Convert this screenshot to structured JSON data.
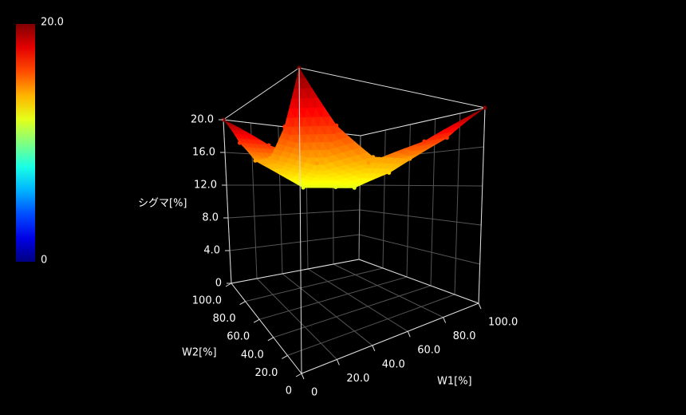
{
  "chart_data": {
    "type": "surface3d",
    "x_label": "W1[%]",
    "y_label": "W2[%]",
    "z_label": "シグマ[%]",
    "x": [
      0,
      20,
      40,
      60,
      80,
      100
    ],
    "y": [
      0,
      20,
      40,
      60,
      80,
      100
    ],
    "values": [
      [
        20,
        16.5,
        14.4,
        14.4,
        16.5,
        20
      ],
      [
        16.5,
        13.3,
        12,
        13.3,
        16.5,
        null
      ],
      [
        14.4,
        12,
        12,
        14.4,
        null,
        null
      ],
      [
        14.4,
        13.3,
        14.4,
        null,
        null,
        null
      ],
      [
        16.5,
        16.5,
        null,
        null,
        null,
        null
      ],
      [
        20,
        null,
        null,
        null,
        null,
        null
      ]
    ],
    "xlim": [
      0,
      100
    ],
    "ylim": [
      0,
      100
    ],
    "zlim": [
      0,
      20
    ],
    "xticks": [
      0,
      {
        "value": 20,
        "label": "20.0"
      },
      {
        "value": 40,
        "label": "40.0"
      },
      {
        "value": 60,
        "label": "60.0"
      },
      {
        "value": 80,
        "label": "80.0"
      },
      {
        "value": 100,
        "label": "100.0"
      }
    ],
    "yticks": [
      0,
      {
        "value": 20,
        "label": "20.0"
      },
      {
        "value": 40,
        "label": "40.0"
      },
      {
        "value": 60,
        "label": "60.0"
      },
      {
        "value": 80,
        "label": "80.0"
      },
      {
        "value": 100,
        "label": "100.0"
      }
    ],
    "zticks": [
      0,
      {
        "value": 4,
        "label": "4.0"
      },
      {
        "value": 8,
        "label": "8.0"
      },
      {
        "value": 12,
        "label": "12.0"
      },
      {
        "value": 16,
        "label": "16.0"
      },
      {
        "value": 20,
        "label": "20.0"
      }
    ],
    "colorbar_ticks": [
      0,
      {
        "value": 20,
        "label": "20.0"
      }
    ],
    "colormap": "jet",
    "grid": true
  }
}
